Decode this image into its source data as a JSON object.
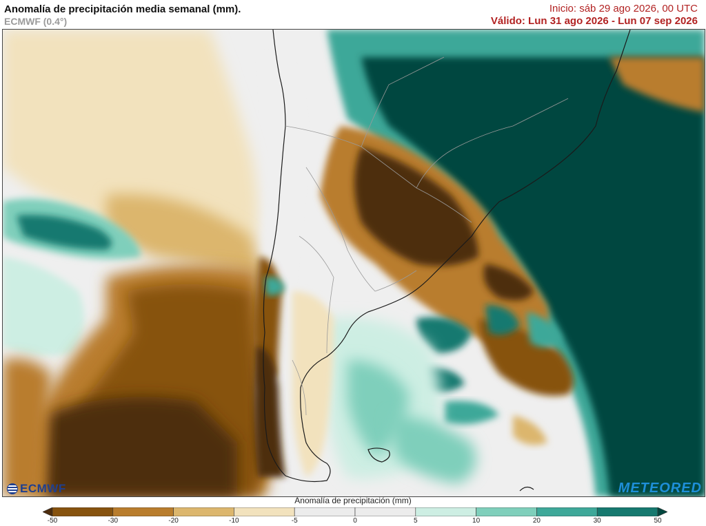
{
  "header": {
    "title": "Anomalía de precipitación media semanal (mm).",
    "model": "ECMWF (0.4°)",
    "init": "Inicio:  sáb 29 ago 2026, 00 UTC",
    "valid": "Válido: Lun 31 ago 2026 - Lun 07 sep 2026"
  },
  "logos": {
    "ecmwf": "ECMWF",
    "meteored": "METEORED"
  },
  "legend": {
    "title": "Anomalía de precipitación (mm)",
    "ticks": [
      "-50",
      "-30",
      "-20",
      "-10",
      "-5",
      "0",
      "5",
      "10",
      "20",
      "30",
      "50"
    ],
    "colors": [
      "#4d2d0e",
      "#87530f",
      "#b97d2d",
      "#dcb66d",
      "#f2e2bd",
      "#ececec",
      "#ececec",
      "#cdeee3",
      "#7fcfbb",
      "#3ea899",
      "#16796f",
      "#03473f"
    ]
  }
}
